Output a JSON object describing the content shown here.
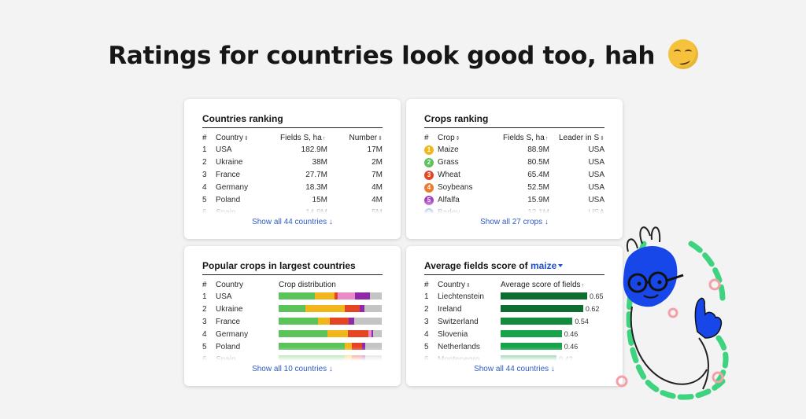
{
  "headline": "Ratings for countries look good too, hah",
  "emoji": "smirking-face",
  "countries_ranking": {
    "title": "Countries ranking",
    "headers": {
      "idx": "#",
      "country": "Country",
      "fields": "Fields S, ha",
      "number": "Number"
    },
    "rows": [
      {
        "idx": "1",
        "country": "USA",
        "fields": "182.9M",
        "number": "17M"
      },
      {
        "idx": "2",
        "country": "Ukraine",
        "fields": "38M",
        "number": "2M"
      },
      {
        "idx": "3",
        "country": "France",
        "fields": "27.7M",
        "number": "7M"
      },
      {
        "idx": "4",
        "country": "Germany",
        "fields": "18.3M",
        "number": "4M"
      },
      {
        "idx": "5",
        "country": "Poland",
        "fields": "15M",
        "number": "4M"
      },
      {
        "idx": "6",
        "country": "Spain",
        "fields": "14.9M",
        "number": "5M"
      }
    ],
    "show_all": "Show all 44 countries ↓"
  },
  "crops_ranking": {
    "title": "Crops ranking",
    "headers": {
      "idx": "#",
      "crop": "Crop",
      "fields": "Fields S, ha",
      "leader": "Leader in S"
    },
    "rows": [
      {
        "idx": "1",
        "badge": "1",
        "badge_color": "#f2b61d",
        "crop": "Maize",
        "fields": "88.9M",
        "leader": "USA"
      },
      {
        "idx": "2",
        "badge": "2",
        "badge_color": "#5cc25a",
        "crop": "Grass",
        "fields": "80.5M",
        "leader": "USA"
      },
      {
        "idx": "3",
        "badge": "3",
        "badge_color": "#e64524",
        "crop": "Wheat",
        "fields": "65.4M",
        "leader": "USA"
      },
      {
        "idx": "4",
        "badge": "4",
        "badge_color": "#ee7a2c",
        "crop": "Soybeans",
        "fields": "52.5M",
        "leader": "USA"
      },
      {
        "idx": "5",
        "badge": "5",
        "badge_color": "#a63fc0",
        "crop": "Alfalfa",
        "fields": "15.9M",
        "leader": "USA"
      },
      {
        "idx": "6",
        "badge": "6",
        "badge_color": "#2a6fb8",
        "crop": "Barley",
        "fields": "12.1M",
        "leader": "USA"
      }
    ],
    "show_all": "Show all 27 crops ↓"
  },
  "popular_crops": {
    "title": "Popular crops in largest countries",
    "headers": {
      "idx": "#",
      "country": "Country",
      "distribution": "Crop distribution"
    },
    "rows": [
      {
        "idx": "1",
        "country": "USA",
        "segments": [
          {
            "color": "#5cc25a",
            "share": 0.35
          },
          {
            "color": "#f2b61d",
            "share": 0.19
          },
          {
            "color": "#e64524",
            "share": 0.03
          },
          {
            "color": "#e98bc7",
            "share": 0.17
          },
          {
            "color": "#8e2aa8",
            "share": 0.15
          },
          {
            "color": "#c4c4c4",
            "share": 0.11
          }
        ]
      },
      {
        "idx": "2",
        "country": "Ukraine",
        "segments": [
          {
            "color": "#5cc25a",
            "share": 0.26
          },
          {
            "color": "#f2b61d",
            "share": 0.38
          },
          {
            "color": "#e64524",
            "share": 0.15
          },
          {
            "color": "#8e2aa8",
            "share": 0.04
          },
          {
            "color": "#c4c4c4",
            "share": 0.17
          }
        ]
      },
      {
        "idx": "3",
        "country": "France",
        "segments": [
          {
            "color": "#5cc25a",
            "share": 0.38
          },
          {
            "color": "#f2b61d",
            "share": 0.12
          },
          {
            "color": "#e64524",
            "share": 0.18
          },
          {
            "color": "#8e2aa8",
            "share": 0.05
          },
          {
            "color": "#c4c4c4",
            "share": 0.27
          }
        ]
      },
      {
        "idx": "4",
        "country": "Germany",
        "segments": [
          {
            "color": "#5cc25a",
            "share": 0.47
          },
          {
            "color": "#f2b61d",
            "share": 0.2
          },
          {
            "color": "#e64524",
            "share": 0.2
          },
          {
            "color": "#e98bc7",
            "share": 0.03
          },
          {
            "color": "#8e2aa8",
            "share": 0.02
          },
          {
            "color": "#c4c4c4",
            "share": 0.08
          }
        ]
      },
      {
        "idx": "5",
        "country": "Poland",
        "segments": [
          {
            "color": "#5cc25a",
            "share": 0.64
          },
          {
            "color": "#f2b61d",
            "share": 0.07
          },
          {
            "color": "#e64524",
            "share": 0.1
          },
          {
            "color": "#8e2aa8",
            "share": 0.03
          },
          {
            "color": "#c4c4c4",
            "share": 0.16
          }
        ]
      },
      {
        "idx": "6",
        "country": "Spain",
        "segments": [
          {
            "color": "#5cc25a",
            "share": 0.64
          },
          {
            "color": "#f2b61d",
            "share": 0.07
          },
          {
            "color": "#e64524",
            "share": 0.1
          },
          {
            "color": "#8e2aa8",
            "share": 0.03
          },
          {
            "color": "#c4c4c4",
            "share": 0.16
          }
        ]
      }
    ],
    "show_all": "Show all 10 countries ↓"
  },
  "average_fields": {
    "title_prefix": "Average fields score of",
    "selected_crop": "maize",
    "headers": {
      "idx": "#",
      "country": "Country",
      "score": "Average score of fields"
    },
    "rows": [
      {
        "idx": "1",
        "country": "Liechtenstein",
        "score": 0.65,
        "score_label": "0.65"
      },
      {
        "idx": "2",
        "country": "Ireland",
        "score": 0.62,
        "score_label": "0.62"
      },
      {
        "idx": "3",
        "country": "Switzerland",
        "score": 0.54,
        "score_label": "0.54"
      },
      {
        "idx": "4",
        "country": "Slovenia",
        "score": 0.46,
        "score_label": "0.46"
      },
      {
        "idx": "5",
        "country": "Netherlands",
        "score": 0.46,
        "score_label": "0.46"
      },
      {
        "idx": "6",
        "country": "Montenegro",
        "score": 0.42,
        "score_label": "0.42"
      }
    ],
    "score_max": 0.65,
    "show_all": "Show all 44 countries ↓"
  },
  "colors": {
    "link": "#2f5bc9",
    "score_bar_dark": "#0e6e30",
    "score_bar_light": "#16a34a",
    "character_blue": "#1747e8",
    "character_green": "#3ed37f"
  }
}
